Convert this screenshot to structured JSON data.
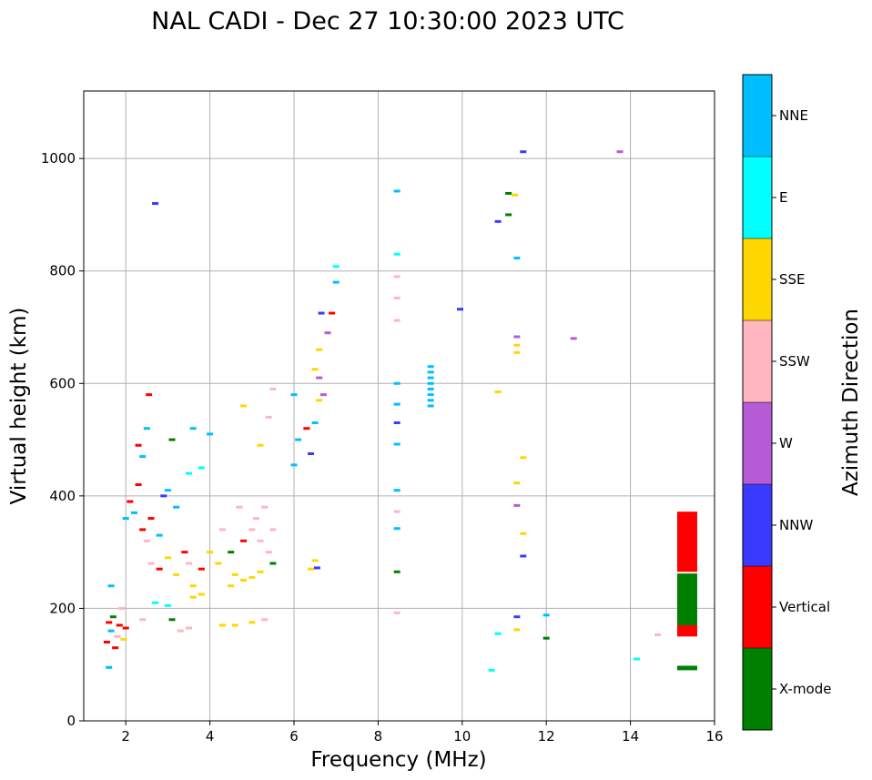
{
  "chart_data": {
    "type": "scatter",
    "title": "NAL CADI - Dec 27 10:30:00 2023 UTC",
    "xlabel": "Frequency (MHz)",
    "ylabel": "Virtual height (km)",
    "xlim": [
      1,
      16
    ],
    "ylim": [
      0,
      1120
    ],
    "xticks": [
      "2",
      "4",
      "6",
      "8",
      "10",
      "12",
      "14",
      "16"
    ],
    "yticks": [
      "0",
      "200",
      "400",
      "600",
      "800",
      "1000"
    ],
    "grid": true,
    "colorbar": {
      "label": "Azimuth Direction",
      "categories": [
        {
          "name": "X-mode",
          "color": "#008000"
        },
        {
          "name": "Vertical",
          "color": "#ff0000"
        },
        {
          "name": "NNW",
          "color": "#3a3aff"
        },
        {
          "name": "W",
          "color": "#b65ad6"
        },
        {
          "name": "SSW",
          "color": "#ffb6c1"
        },
        {
          "name": "SSE",
          "color": "#ffd700"
        },
        {
          "name": "E",
          "color": "#00ffff"
        },
        {
          "name": "NNE",
          "color": "#00bfff"
        }
      ]
    },
    "points": [
      {
        "f": 1.55,
        "h": 140,
        "c": "Vertical"
      },
      {
        "f": 1.6,
        "h": 175,
        "c": "Vertical"
      },
      {
        "f": 1.65,
        "h": 160,
        "c": "NNE"
      },
      {
        "f": 1.7,
        "h": 185,
        "c": "X-mode"
      },
      {
        "f": 1.75,
        "h": 130,
        "c": "Vertical"
      },
      {
        "f": 1.8,
        "h": 150,
        "c": "SSW"
      },
      {
        "f": 1.85,
        "h": 170,
        "c": "Vertical"
      },
      {
        "f": 1.9,
        "h": 200,
        "c": "SSW"
      },
      {
        "f": 1.95,
        "h": 145,
        "c": "SSE"
      },
      {
        "f": 2.0,
        "h": 165,
        "c": "Vertical"
      },
      {
        "f": 1.6,
        "h": 95,
        "c": "NNE"
      },
      {
        "f": 1.65,
        "h": 240,
        "c": "NNE"
      },
      {
        "f": 2.0,
        "h": 360,
        "c": "NNE"
      },
      {
        "f": 2.1,
        "h": 390,
        "c": "Vertical"
      },
      {
        "f": 2.2,
        "h": 370,
        "c": "NNE"
      },
      {
        "f": 2.3,
        "h": 420,
        "c": "Vertical"
      },
      {
        "f": 2.4,
        "h": 340,
        "c": "Vertical"
      },
      {
        "f": 2.4,
        "h": 470,
        "c": "NNE"
      },
      {
        "f": 2.5,
        "h": 520,
        "c": "NNE"
      },
      {
        "f": 2.55,
        "h": 580,
        "c": "Vertical"
      },
      {
        "f": 2.6,
        "h": 360,
        "c": "Vertical"
      },
      {
        "f": 2.3,
        "h": 490,
        "c": "Vertical"
      },
      {
        "f": 2.5,
        "h": 320,
        "c": "SSW"
      },
      {
        "f": 2.6,
        "h": 280,
        "c": "SSW"
      },
      {
        "f": 2.7,
        "h": 920,
        "c": "NNW"
      },
      {
        "f": 2.8,
        "h": 330,
        "c": "NNE"
      },
      {
        "f": 2.9,
        "h": 400,
        "c": "NNW"
      },
      {
        "f": 3.0,
        "h": 410,
        "c": "NNE"
      },
      {
        "f": 3.1,
        "h": 500,
        "c": "X-mode"
      },
      {
        "f": 3.2,
        "h": 380,
        "c": "NNE"
      },
      {
        "f": 2.8,
        "h": 270,
        "c": "Vertical"
      },
      {
        "f": 3.0,
        "h": 290,
        "c": "SSE"
      },
      {
        "f": 3.2,
        "h": 260,
        "c": "SSE"
      },
      {
        "f": 3.4,
        "h": 300,
        "c": "Vertical"
      },
      {
        "f": 3.5,
        "h": 280,
        "c": "SSW"
      },
      {
        "f": 3.6,
        "h": 240,
        "c": "SSE"
      },
      {
        "f": 3.8,
        "h": 270,
        "c": "Vertical"
      },
      {
        "f": 4.0,
        "h": 300,
        "c": "SSE"
      },
      {
        "f": 2.7,
        "h": 210,
        "c": "E"
      },
      {
        "f": 3.0,
        "h": 205,
        "c": "E"
      },
      {
        "f": 3.6,
        "h": 220,
        "c": "SSE"
      },
      {
        "f": 3.8,
        "h": 225,
        "c": "SSE"
      },
      {
        "f": 3.5,
        "h": 440,
        "c": "E"
      },
      {
        "f": 3.8,
        "h": 450,
        "c": "E"
      },
      {
        "f": 4.0,
        "h": 510,
        "c": "NNE"
      },
      {
        "f": 3.6,
        "h": 520,
        "c": "NNE"
      },
      {
        "f": 3.3,
        "h": 160,
        "c": "SSW"
      },
      {
        "f": 3.5,
        "h": 165,
        "c": "SSW"
      },
      {
        "f": 3.1,
        "h": 180,
        "c": "X-mode"
      },
      {
        "f": 2.4,
        "h": 180,
        "c": "SSW"
      },
      {
        "f": 4.2,
        "h": 280,
        "c": "SSE"
      },
      {
        "f": 4.3,
        "h": 340,
        "c": "SSW"
      },
      {
        "f": 4.5,
        "h": 300,
        "c": "X-mode"
      },
      {
        "f": 4.6,
        "h": 260,
        "c": "SSE"
      },
      {
        "f": 4.7,
        "h": 380,
        "c": "SSW"
      },
      {
        "f": 4.8,
        "h": 320,
        "c": "Vertical"
      },
      {
        "f": 5.0,
        "h": 340,
        "c": "SSW"
      },
      {
        "f": 5.1,
        "h": 360,
        "c": "SSW"
      },
      {
        "f": 5.2,
        "h": 320,
        "c": "SSW"
      },
      {
        "f": 5.3,
        "h": 380,
        "c": "SSW"
      },
      {
        "f": 5.4,
        "h": 300,
        "c": "SSW"
      },
      {
        "f": 5.5,
        "h": 340,
        "c": "SSW"
      },
      {
        "f": 4.5,
        "h": 240,
        "c": "SSE"
      },
      {
        "f": 4.8,
        "h": 250,
        "c": "SSE"
      },
      {
        "f": 5.0,
        "h": 255,
        "c": "SSE"
      },
      {
        "f": 5.2,
        "h": 265,
        "c": "SSE"
      },
      {
        "f": 5.5,
        "h": 280,
        "c": "X-mode"
      },
      {
        "f": 4.3,
        "h": 170,
        "c": "SSE"
      },
      {
        "f": 4.6,
        "h": 170,
        "c": "SSE"
      },
      {
        "f": 5.0,
        "h": 175,
        "c": "SSE"
      },
      {
        "f": 5.3,
        "h": 180,
        "c": "SSW"
      },
      {
        "f": 5.2,
        "h": 490,
        "c": "SSE"
      },
      {
        "f": 5.4,
        "h": 540,
        "c": "SSW"
      },
      {
        "f": 4.8,
        "h": 560,
        "c": "SSE"
      },
      {
        "f": 5.5,
        "h": 590,
        "c": "SSW"
      },
      {
        "f": 6.0,
        "h": 455,
        "c": "NNE"
      },
      {
        "f": 6.1,
        "h": 500,
        "c": "NNE"
      },
      {
        "f": 6.3,
        "h": 520,
        "c": "Vertical"
      },
      {
        "f": 6.4,
        "h": 475,
        "c": "NNW"
      },
      {
        "f": 6.5,
        "h": 530,
        "c": "NNE"
      },
      {
        "f": 6.5,
        "h": 625,
        "c": "SSE"
      },
      {
        "f": 6.6,
        "h": 610,
        "c": "W"
      },
      {
        "f": 6.6,
        "h": 660,
        "c": "SSE"
      },
      {
        "f": 6.65,
        "h": 725,
        "c": "NNW"
      },
      {
        "f": 6.7,
        "h": 580,
        "c": "W"
      },
      {
        "f": 6.8,
        "h": 690,
        "c": "W"
      },
      {
        "f": 6.9,
        "h": 725,
        "c": "Vertical"
      },
      {
        "f": 7.0,
        "h": 780,
        "c": "NNE"
      },
      {
        "f": 7.0,
        "h": 808,
        "c": "E"
      },
      {
        "f": 6.4,
        "h": 270,
        "c": "SSE"
      },
      {
        "f": 6.5,
        "h": 285,
        "c": "SSE"
      },
      {
        "f": 6.55,
        "h": 272,
        "c": "NNW"
      },
      {
        "f": 6.0,
        "h": 580,
        "c": "NNE"
      },
      {
        "f": 6.6,
        "h": 570,
        "c": "SSE"
      },
      {
        "f": 8.45,
        "h": 942,
        "c": "NNE"
      },
      {
        "f": 8.45,
        "h": 830,
        "c": "E"
      },
      {
        "f": 8.45,
        "h": 790,
        "c": "SSW"
      },
      {
        "f": 8.45,
        "h": 752,
        "c": "SSW"
      },
      {
        "f": 8.45,
        "h": 712,
        "c": "SSW"
      },
      {
        "f": 8.45,
        "h": 600,
        "c": "NNE"
      },
      {
        "f": 8.45,
        "h": 563,
        "c": "NNE"
      },
      {
        "f": 8.45,
        "h": 530,
        "c": "NNW"
      },
      {
        "f": 8.45,
        "h": 492,
        "c": "NNE"
      },
      {
        "f": 8.45,
        "h": 410,
        "c": "NNE"
      },
      {
        "f": 8.45,
        "h": 372,
        "c": "SSW"
      },
      {
        "f": 8.45,
        "h": 342,
        "c": "NNE"
      },
      {
        "f": 8.45,
        "h": 265,
        "c": "X-mode"
      },
      {
        "f": 8.45,
        "h": 192,
        "c": "SSW"
      },
      {
        "f": 9.25,
        "h": 630,
        "c": "NNE"
      },
      {
        "f": 9.25,
        "h": 620,
        "c": "NNE"
      },
      {
        "f": 9.25,
        "h": 610,
        "c": "NNE"
      },
      {
        "f": 9.25,
        "h": 600,
        "c": "NNE"
      },
      {
        "f": 9.25,
        "h": 590,
        "c": "NNE"
      },
      {
        "f": 9.25,
        "h": 580,
        "c": "NNE"
      },
      {
        "f": 9.25,
        "h": 570,
        "c": "NNE"
      },
      {
        "f": 9.25,
        "h": 560,
        "c": "NNE"
      },
      {
        "f": 9.95,
        "h": 732,
        "c": "NNW"
      },
      {
        "f": 10.85,
        "h": 888,
        "c": "NNW"
      },
      {
        "f": 11.1,
        "h": 938,
        "c": "X-mode"
      },
      {
        "f": 11.25,
        "h": 935,
        "c": "SSE"
      },
      {
        "f": 11.1,
        "h": 900,
        "c": "X-mode"
      },
      {
        "f": 11.45,
        "h": 1012,
        "c": "NNW"
      },
      {
        "f": 11.3,
        "h": 823,
        "c": "NNE"
      },
      {
        "f": 11.3,
        "h": 683,
        "c": "W"
      },
      {
        "f": 11.3,
        "h": 668,
        "c": "SSE"
      },
      {
        "f": 11.3,
        "h": 655,
        "c": "SSE"
      },
      {
        "f": 10.85,
        "h": 585,
        "c": "SSE"
      },
      {
        "f": 11.45,
        "h": 468,
        "c": "SSE"
      },
      {
        "f": 11.3,
        "h": 423,
        "c": "SSE"
      },
      {
        "f": 11.3,
        "h": 383,
        "c": "W"
      },
      {
        "f": 11.45,
        "h": 333,
        "c": "SSE"
      },
      {
        "f": 11.45,
        "h": 293,
        "c": "NNW"
      },
      {
        "f": 11.3,
        "h": 185,
        "c": "NNW"
      },
      {
        "f": 11.3,
        "h": 162,
        "c": "SSE"
      },
      {
        "f": 10.85,
        "h": 155,
        "c": "E"
      },
      {
        "f": 10.7,
        "h": 90,
        "c": "E"
      },
      {
        "f": 12.0,
        "h": 188,
        "c": "NNE"
      },
      {
        "f": 12.0,
        "h": 147,
        "c": "X-mode"
      },
      {
        "f": 12.65,
        "h": 680,
        "c": "W"
      },
      {
        "f": 13.75,
        "h": 1012,
        "c": "W"
      },
      {
        "f": 14.15,
        "h": 110,
        "c": "E"
      },
      {
        "f": 14.65,
        "h": 153,
        "c": "SSW"
      }
    ],
    "segments": [
      {
        "f": 15.35,
        "h1": 265,
        "h2": 372,
        "c": "Vertical"
      },
      {
        "f": 15.35,
        "h1": 165,
        "h2": 262,
        "c": "X-mode"
      },
      {
        "f": 15.35,
        "h1": 150,
        "h2": 170,
        "c": "Vertical"
      },
      {
        "f": 15.35,
        "h1": 90,
        "h2": 98,
        "c": "X-mode"
      }
    ]
  }
}
